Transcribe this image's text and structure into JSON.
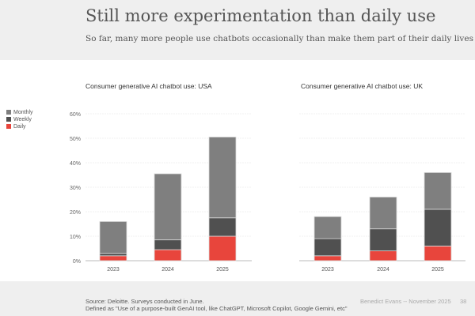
{
  "header": {
    "title": "Still more experimentation than daily use",
    "subtitle": "So far, many more people use chatbots occasionally than make them part of their daily lives"
  },
  "legend": [
    {
      "name": "Monthly",
      "color": "#7f7f7f"
    },
    {
      "name": "Weekly",
      "color": "#505050"
    },
    {
      "name": "Daily",
      "color": "#e8453c"
    }
  ],
  "chart_data": [
    {
      "type": "bar",
      "stacked": true,
      "title": "Consumer generative AI chatbot use: USA",
      "categories": [
        "2023",
        "2024",
        "2025"
      ],
      "ylim": [
        0,
        60
      ],
      "yticks": [
        "0%",
        "10%",
        "20%",
        "30%",
        "40%",
        "50%",
        "60%"
      ],
      "series": [
        {
          "name": "Daily",
          "values": [
            2,
            4.5,
            10
          ]
        },
        {
          "name": "Weekly",
          "values": [
            1,
            4,
            7.5
          ]
        },
        {
          "name": "Monthly",
          "values": [
            13,
            27,
            33
          ]
        }
      ],
      "grid": true
    },
    {
      "type": "bar",
      "stacked": true,
      "title": "Consumer generative AI chatbot use: UK",
      "categories": [
        "2023",
        "2024",
        "2025"
      ],
      "ylim": [
        0,
        60
      ],
      "series": [
        {
          "name": "Daily",
          "values": [
            2,
            4,
            6
          ]
        },
        {
          "name": "Weekly",
          "values": [
            7,
            9,
            15
          ]
        },
        {
          "name": "Monthly",
          "values": [
            9,
            13,
            15
          ]
        }
      ],
      "grid": true
    }
  ],
  "footer": {
    "source": "Source: Deloitte. Surveys conducted in June.",
    "definition": "Defined as \"Use of a purpose-built GenAI tool, like ChatGPT, Microsoft Copilot, Google Gemini, etc\"",
    "author": "Benedict Evans  --  November 2025",
    "page": "38"
  }
}
